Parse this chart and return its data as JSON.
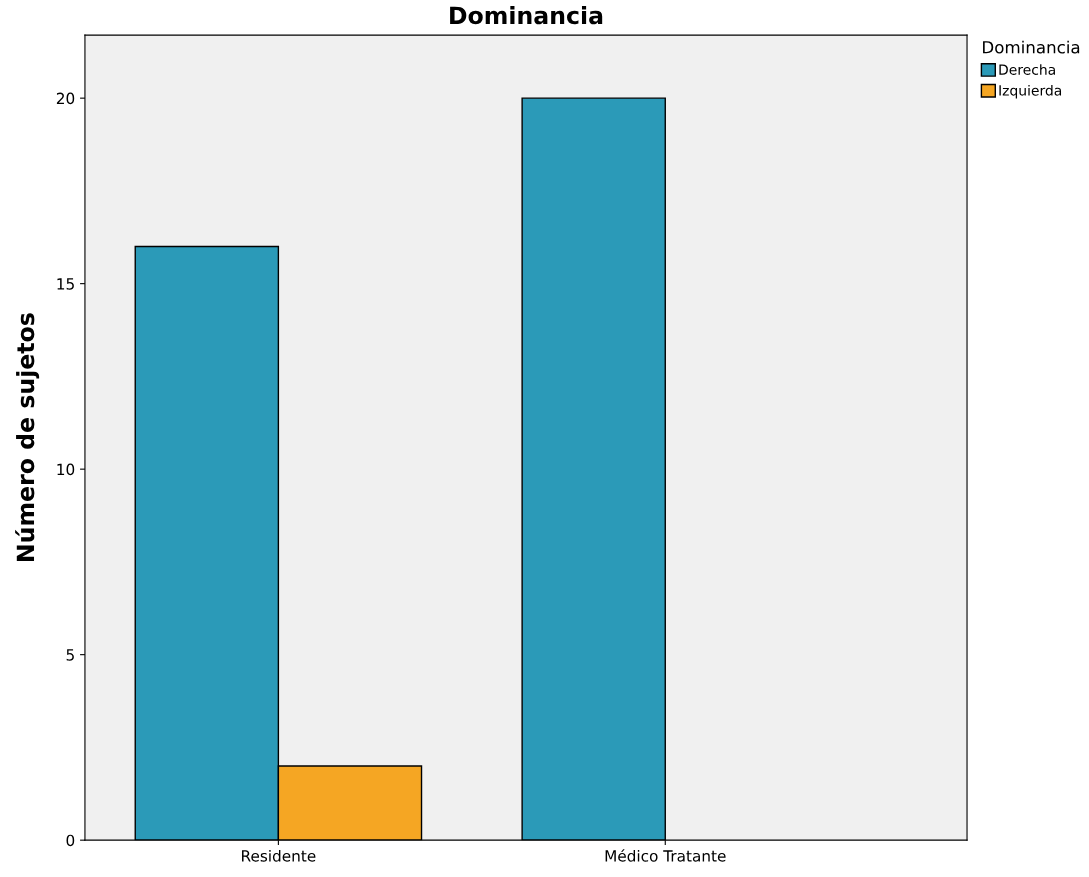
{
  "chart_data": {
    "type": "bar",
    "title": "Dominancia",
    "ylabel": "Número de sujetos",
    "legend_title": "Dominancia",
    "categories": [
      "Residente",
      "Médico Tratante"
    ],
    "series": [
      {
        "name": "Derecha",
        "color": "#2b9ab8",
        "values": [
          16,
          20
        ]
      },
      {
        "name": "Izquierda",
        "color": "#f5a623",
        "values": [
          2,
          null
        ]
      }
    ],
    "ylim": [
      0,
      21.7
    ],
    "yticks": [
      0,
      5,
      10,
      15,
      20
    ],
    "grid": false,
    "legend": "top right"
  }
}
